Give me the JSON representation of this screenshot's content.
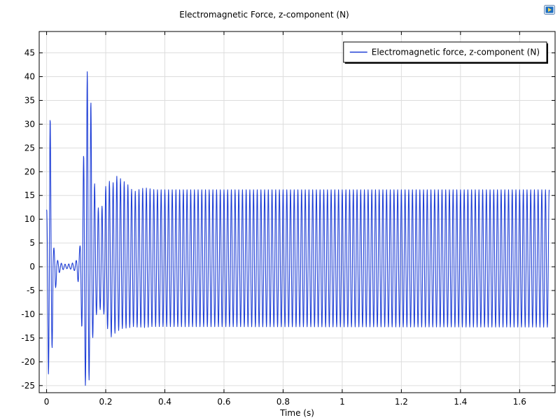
{
  "app_icon": "comsol-plot-icon",
  "chart_data": {
    "type": "line",
    "title": "Electromagnetic Force, z-component (N)",
    "xlabel": "Time (s)",
    "ylabel": "",
    "xlim": [
      -0.025,
      1.72
    ],
    "ylim": [
      -26.5,
      49.5
    ],
    "x_ticks": [
      0,
      0.2,
      0.4,
      0.6,
      0.8,
      1,
      1.2,
      1.4,
      1.6
    ],
    "x_tick_labels": [
      "0",
      "0.2",
      "0.4",
      "0.6",
      "0.8",
      "1",
      "1.2",
      "1.4",
      "1.6"
    ],
    "y_ticks": [
      -25,
      -20,
      -15,
      -10,
      -5,
      0,
      5,
      10,
      15,
      20,
      25,
      30,
      35,
      40,
      45
    ],
    "y_tick_labels": [
      "-25",
      "-20",
      "-15",
      "-10",
      "-5",
      "0",
      "5",
      "10",
      "15",
      "20",
      "25",
      "30",
      "35",
      "40",
      "45"
    ],
    "grid": true,
    "legend_position": "top-right",
    "series_color": "#1f3fd6",
    "series": [
      {
        "name": "Electromagnetic force, z-component (N)",
        "period": 0.0125,
        "peaks": [
          [
            0.0,
            12.0,
            -2.0
          ],
          [
            0.006,
            16.8,
            -22.5
          ],
          [
            0.011,
            36.0,
            -23.5
          ],
          [
            0.019,
            6.1,
            -16.8
          ],
          [
            0.031,
            1.8,
            -4.2
          ],
          [
            0.044,
            0.9,
            -1.1
          ],
          [
            0.056,
            0.6,
            -0.6
          ],
          [
            0.069,
            0.5,
            -0.4
          ],
          [
            0.081,
            0.7,
            -0.5
          ],
          [
            0.094,
            0.9,
            -0.8
          ],
          [
            0.1,
            1.3,
            -1.5
          ],
          [
            0.106,
            2.4,
            -3.0
          ],
          [
            0.113,
            4.4,
            -5.6
          ],
          [
            0.12,
            13.6,
            -14.0
          ],
          [
            0.131,
            34.8,
            -25.0
          ],
          [
            0.144,
            47.3,
            -23.8
          ],
          [
            0.156,
            21.6,
            -15.0
          ],
          [
            0.169,
            13.3,
            -10.0
          ],
          [
            0.181,
            11.5,
            -9.0
          ],
          [
            0.194,
            14.0,
            -10.0
          ],
          [
            0.206,
            19.8,
            -13.0
          ],
          [
            0.219,
            16.2,
            -14.8
          ],
          [
            0.231,
            19.2,
            -14.0
          ],
          [
            0.244,
            18.9,
            -13.4
          ],
          [
            0.256,
            18.2,
            -13.0
          ],
          [
            0.269,
            17.6,
            -12.9
          ],
          [
            0.281,
            16.9,
            -12.8
          ],
          [
            0.294,
            15.7,
            -12.6
          ],
          [
            0.306,
            16.1,
            -12.7
          ],
          [
            0.319,
            16.4,
            -12.7
          ],
          [
            0.331,
            16.6,
            -12.8
          ],
          [
            0.344,
            16.5,
            -12.7
          ],
          [
            0.356,
            16.3,
            -12.6
          ],
          [
            0.369,
            16.2,
            -12.6
          ],
          [
            0.4,
            16.2,
            -12.6
          ],
          [
            1.7,
            16.2,
            -12.7
          ]
        ]
      }
    ]
  }
}
